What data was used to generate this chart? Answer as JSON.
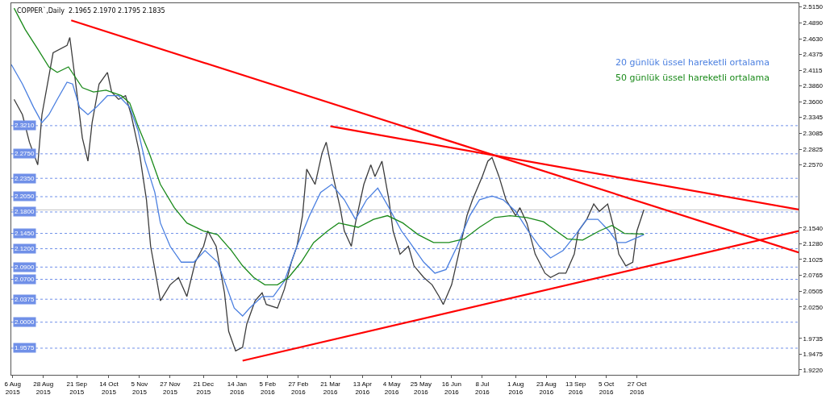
{
  "chart_data": {
    "type": "line",
    "title": "COPPER`,Daily  2.1965 2.1970 2.1795 2.1835",
    "x": [
      "2015-08-07",
      "2015-08-13",
      "2015-08-18",
      "2015-08-24",
      "2015-08-27",
      "2015-09-01",
      "2015-09-04",
      "2015-09-14",
      "2015-09-16",
      "2015-09-21",
      "2015-09-25",
      "2015-09-29",
      "2015-10-02",
      "2015-10-07",
      "2015-10-13",
      "2015-10-16",
      "2015-10-21",
      "2015-10-26",
      "2015-10-30",
      "2015-11-05",
      "2015-11-10",
      "2015-11-13",
      "2015-11-18",
      "2015-11-20",
      "2015-11-27",
      "2015-12-03",
      "2015-12-09",
      "2015-12-15",
      "2015-12-21",
      "2015-12-24",
      "2015-12-30",
      "2016-01-05",
      "2016-01-08",
      "2016-01-13",
      "2016-01-18",
      "2016-01-21",
      "2016-01-27",
      "2016-02-01",
      "2016-02-04",
      "2016-02-12",
      "2016-02-17",
      "2016-02-22",
      "2016-02-26",
      "2016-03-01",
      "2016-03-04",
      "2016-03-10",
      "2016-03-15",
      "2016-03-18",
      "2016-03-23",
      "2016-03-28",
      "2016-03-31",
      "2016-04-05",
      "2016-04-08",
      "2016-04-14",
      "2016-04-19",
      "2016-04-22",
      "2016-04-27",
      "2016-05-02",
      "2016-05-05",
      "2016-05-10",
      "2016-05-16",
      "2016-05-20",
      "2016-05-27",
      "2016-06-02",
      "2016-06-07",
      "2016-06-10",
      "2016-06-16",
      "2016-06-21",
      "2016-06-27",
      "2016-07-01",
      "2016-07-08",
      "2016-07-12",
      "2016-07-15",
      "2016-07-20",
      "2016-07-25",
      "2016-08-01",
      "2016-08-04",
      "2016-08-09",
      "2016-08-15",
      "2016-08-22",
      "2016-08-26",
      "2016-09-01",
      "2016-09-06",
      "2016-09-12",
      "2016-09-15",
      "2016-09-21",
      "2016-09-26",
      "2016-09-30",
      "2016-10-06",
      "2016-10-11",
      "2016-10-14",
      "2016-10-19",
      "2016-10-24",
      "2016-10-27",
      "2016-11-01"
    ],
    "series": [
      {
        "color": "#3c3c3c",
        "values": [
          2.364,
          2.339,
          2.294,
          2.257,
          2.339,
          2.402,
          2.44,
          2.452,
          2.465,
          2.376,
          2.301,
          2.263,
          2.326,
          2.389,
          2.408,
          2.376,
          2.364,
          2.37,
          2.339,
          2.276,
          2.2,
          2.124,
          2.061,
          2.035,
          2.061,
          2.073,
          2.042,
          2.098,
          2.124,
          2.149,
          2.124,
          2.048,
          1.985,
          1.953,
          1.959,
          1.997,
          2.035,
          2.048,
          2.029,
          2.023,
          2.054,
          2.098,
          2.124,
          2.174,
          2.25,
          2.225,
          2.276,
          2.294,
          2.238,
          2.187,
          2.149,
          2.124,
          2.162,
          2.225,
          2.257,
          2.238,
          2.263,
          2.2,
          2.149,
          2.111,
          2.124,
          2.092,
          2.073,
          2.061,
          2.042,
          2.029,
          2.061,
          2.111,
          2.174,
          2.2,
          2.238,
          2.263,
          2.269,
          2.238,
          2.2,
          2.174,
          2.187,
          2.162,
          2.111,
          2.08,
          2.073,
          2.08,
          2.08,
          2.111,
          2.149,
          2.168,
          2.193,
          2.181,
          2.193,
          2.149,
          2.111,
          2.092,
          2.098,
          2.149,
          2.1835
        ]
      },
      {
        "name": "20 günlük üssel hareketli ortalama",
        "color": "#4a7fe0",
        "x": [
          "2015-08-05",
          "2015-08-13",
          "2015-08-21",
          "2015-08-27",
          "2015-09-01",
          "2015-09-07",
          "2015-09-14",
          "2015-09-18",
          "2015-09-23",
          "2015-09-29",
          "2015-10-05",
          "2015-10-13",
          "2015-10-21",
          "2015-10-29",
          "2015-11-04",
          "2015-11-09",
          "2015-11-16",
          "2015-11-20",
          "2015-11-27",
          "2015-12-05",
          "2015-12-14",
          "2015-12-22",
          "2015-12-31",
          "2016-01-06",
          "2016-01-12",
          "2016-01-18",
          "2016-01-23",
          "2016-02-01",
          "2016-02-09",
          "2016-02-17",
          "2016-02-26",
          "2016-03-06",
          "2016-03-14",
          "2016-03-22",
          "2016-03-31",
          "2016-04-08",
          "2016-04-16",
          "2016-04-24",
          "2016-05-02",
          "2016-05-11",
          "2016-05-19",
          "2016-05-27",
          "2016-06-04",
          "2016-06-12",
          "2016-06-20",
          "2016-06-29",
          "2016-07-06",
          "2016-07-15",
          "2016-07-23",
          "2016-08-01",
          "2016-08-10",
          "2016-08-18",
          "2016-08-26",
          "2016-09-04",
          "2016-09-13",
          "2016-09-21",
          "2016-09-29",
          "2016-10-07",
          "2016-10-13",
          "2016-10-19",
          "2016-11-01"
        ],
        "values": [
          2.421,
          2.389,
          2.351,
          2.326,
          2.339,
          2.364,
          2.392,
          2.389,
          2.351,
          2.339,
          2.351,
          2.37,
          2.37,
          2.351,
          2.313,
          2.263,
          2.212,
          2.162,
          2.124,
          2.098,
          2.098,
          2.117,
          2.098,
          2.061,
          2.023,
          2.01,
          2.023,
          2.042,
          2.042,
          2.067,
          2.124,
          2.174,
          2.212,
          2.225,
          2.2,
          2.168,
          2.2,
          2.219,
          2.187,
          2.149,
          2.124,
          2.098,
          2.08,
          2.086,
          2.124,
          2.174,
          2.2,
          2.206,
          2.2,
          2.181,
          2.149,
          2.124,
          2.105,
          2.117,
          2.143,
          2.168,
          2.168,
          2.149,
          2.13,
          2.13,
          2.143
        ]
      },
      {
        "name": "50 günlük üssel hareketli ortalama",
        "color": "#1a8a1a",
        "x": [
          "2015-08-07",
          "2015-08-15",
          "2015-08-24",
          "2015-09-01",
          "2015-09-07",
          "2015-09-15",
          "2015-09-25",
          "2015-10-03",
          "2015-10-12",
          "2015-10-23",
          "2015-10-29",
          "2015-11-04",
          "2015-11-12",
          "2015-11-20",
          "2015-11-30",
          "2015-12-09",
          "2015-12-21",
          "2015-12-31",
          "2016-01-10",
          "2016-01-18",
          "2016-01-26",
          "2016-02-03",
          "2016-02-12",
          "2016-02-20",
          "2016-02-29",
          "2016-03-09",
          "2016-03-19",
          "2016-03-27",
          "2016-04-10",
          "2016-04-21",
          "2016-05-01",
          "2016-05-12",
          "2016-05-23",
          "2016-06-03",
          "2016-06-14",
          "2016-06-25",
          "2016-07-06",
          "2016-07-17",
          "2016-07-28",
          "2016-08-09",
          "2016-08-21",
          "2016-08-30",
          "2016-09-07",
          "2016-09-18",
          "2016-09-30",
          "2016-10-09",
          "2016-10-18",
          "2016-11-01"
        ],
        "values": [
          2.513,
          2.478,
          2.446,
          2.417,
          2.408,
          2.417,
          2.383,
          2.376,
          2.379,
          2.37,
          2.358,
          2.32,
          2.276,
          2.225,
          2.187,
          2.162,
          2.149,
          2.143,
          2.117,
          2.092,
          2.073,
          2.061,
          2.061,
          2.073,
          2.098,
          2.13,
          2.149,
          2.162,
          2.155,
          2.168,
          2.174,
          2.162,
          2.143,
          2.13,
          2.13,
          2.136,
          2.155,
          2.171,
          2.174,
          2.171,
          2.164,
          2.149,
          2.136,
          2.134,
          2.149,
          2.158,
          2.145,
          2.144
        ]
      },
      {
        "color": "#ff0000",
        "x": [
          "2015-09-17",
          "2017-02-20"
        ],
        "values": [
          2.493,
          2.114
        ]
      },
      {
        "color": "#ff0000",
        "x": [
          "2016-03-21",
          "2017-02-20"
        ],
        "values": [
          2.32,
          2.184
        ]
      },
      {
        "color": "#ff0000",
        "x": [
          "2016-01-18",
          "2017-02-20"
        ],
        "values": [
          1.937,
          2.149
        ]
      }
    ],
    "xlim": [
      "2015-08-05",
      "2017-02-20"
    ],
    "xticks": [
      {
        "value": "2015-08-06",
        "label": "6 Aug 2015"
      },
      {
        "value": "2015-08-28",
        "label": "28 Aug 2015"
      },
      {
        "value": "2015-09-21",
        "label": "21 Sep 2015"
      },
      {
        "value": "2015-10-14",
        "label": "14 Oct 2015"
      },
      {
        "value": "2015-11-05",
        "label": "5 Nov 2015"
      },
      {
        "value": "2015-11-27",
        "label": "27 Nov 2015"
      },
      {
        "value": "2015-12-21",
        "label": "21 Dec 2015"
      },
      {
        "value": "2016-01-14",
        "label": "14 Jan 2016"
      },
      {
        "value": "2016-02-05",
        "label": "5 Feb 2016"
      },
      {
        "value": "2016-02-27",
        "label": "27 Feb 2016"
      },
      {
        "value": "2016-03-21",
        "label": "21 Mar 2016"
      },
      {
        "value": "2016-04-13",
        "label": "13 Apr 2016"
      },
      {
        "value": "2016-05-04",
        "label": "4 May 2016"
      },
      {
        "value": "2016-05-25",
        "label": "25 May 2016"
      },
      {
        "value": "2016-06-16",
        "label": "16 Jun 2016"
      },
      {
        "value": "2016-07-08",
        "label": "8 Jul 2016"
      },
      {
        "value": "2016-08-01",
        "label": "1 Aug 2016"
      },
      {
        "value": "2016-08-23",
        "label": "23 Aug 2016"
      },
      {
        "value": "2016-09-13",
        "label": "13 Sep 2016"
      },
      {
        "value": "2016-10-05",
        "label": "5 Oct 2016"
      },
      {
        "value": "2016-10-27",
        "label": "27 Oct 2016"
      }
    ],
    "ylim": [
      1.914,
      2.521
    ],
    "yticks": [
      {
        "value": 2.515,
        "label": "2.5150"
      },
      {
        "value": 2.489,
        "label": "2.4890"
      },
      {
        "value": 2.463,
        "label": "2.4630"
      },
      {
        "value": 2.4375,
        "label": "2.4375"
      },
      {
        "value": 2.4115,
        "label": "2.4115"
      },
      {
        "value": 2.386,
        "label": "2.3860"
      },
      {
        "value": 2.36,
        "label": "2.3600"
      },
      {
        "value": 2.3345,
        "label": "2.3345"
      },
      {
        "value": 2.3085,
        "label": "2.3085"
      },
      {
        "value": 2.2825,
        "label": "2.2825"
      },
      {
        "value": 2.257,
        "label": "2.2570"
      },
      {
        "value": 2.154,
        "label": "2.1540"
      },
      {
        "value": 2.128,
        "label": "2.1280"
      },
      {
        "value": 2.1025,
        "label": "2.1025"
      },
      {
        "value": 2.0765,
        "label": "2.0765"
      },
      {
        "value": 2.0505,
        "label": "2.0505"
      },
      {
        "value": 2.025,
        "label": "2.0250"
      },
      {
        "value": 1.9735,
        "label": "1.9735"
      },
      {
        "value": 1.9475,
        "label": "1.9475"
      },
      {
        "value": 1.922,
        "label": "1.9220"
      }
    ],
    "ref_lines": [
      {
        "axis": "y",
        "value": 2.321,
        "label": "2.3210",
        "color": "#7090e8",
        "line_style": "dotted"
      },
      {
        "axis": "y",
        "value": 2.275,
        "label": "2.2750",
        "color": "#7090e8",
        "line_style": "dotted"
      },
      {
        "axis": "y",
        "value": 2.235,
        "label": "2.2350",
        "color": "#7090e8",
        "line_style": "dotted"
      },
      {
        "axis": "y",
        "value": 2.205,
        "label": "2.2050",
        "color": "#7090e8",
        "line_style": "dotted"
      },
      {
        "axis": "y",
        "value": 2.18,
        "label": "2.1800",
        "color": "#7090e8",
        "line_style": "dotted"
      },
      {
        "axis": "y",
        "value": 2.145,
        "label": "2.1450",
        "color": "#7090e8",
        "line_style": "dotted"
      },
      {
        "axis": "y",
        "value": 2.12,
        "label": "2.1200",
        "color": "#7090e8",
        "line_style": "dotted"
      },
      {
        "axis": "y",
        "value": 2.09,
        "label": "2.0900",
        "color": "#7090e8",
        "line_style": "dotted"
      },
      {
        "axis": "y",
        "value": 2.07,
        "label": "2.0700",
        "color": "#7090e8",
        "line_style": "dotted"
      },
      {
        "axis": "y",
        "value": 2.0375,
        "label": "2.0375",
        "color": "#7090e8",
        "line_style": "dotted"
      },
      {
        "axis": "y",
        "value": 2.0,
        "label": "2.0000",
        "color": "#7090e8",
        "line_style": "dotted"
      },
      {
        "axis": "y",
        "value": 1.9575,
        "label": "1.9575",
        "color": "#7090e8",
        "line_style": "dotted"
      },
      {
        "axis": "y",
        "value": 2.1835,
        "color": "#c0c0c0",
        "line_style": "solid"
      }
    ]
  }
}
